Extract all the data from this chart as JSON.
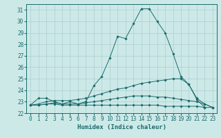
{
  "xlabel": "Humidex (Indice chaleur)",
  "xlim": [
    -0.5,
    23.5
  ],
  "ylim": [
    22,
    31.5
  ],
  "yticks": [
    22,
    23,
    24,
    25,
    26,
    27,
    28,
    29,
    30,
    31
  ],
  "xticks": [
    0,
    1,
    2,
    3,
    4,
    5,
    6,
    7,
    8,
    9,
    10,
    11,
    12,
    13,
    14,
    15,
    16,
    17,
    18,
    19,
    20,
    21,
    22,
    23
  ],
  "background_color": "#cce9e8",
  "grid_color": "#aacfce",
  "line_color": "#1a6b6b",
  "series": [
    {
      "x": [
        0,
        1,
        2,
        3,
        4,
        5,
        6,
        7,
        8,
        9,
        10,
        11,
        12,
        13,
        14,
        15,
        16,
        17,
        18,
        19,
        20,
        21,
        22
      ],
      "y": [
        22.7,
        23.3,
        23.3,
        23.0,
        22.8,
        23.0,
        22.8,
        23.0,
        24.4,
        25.2,
        26.8,
        28.7,
        28.5,
        29.8,
        31.1,
        31.1,
        30.0,
        29.0,
        27.2,
        25.2,
        24.5,
        23.2,
        22.5
      ]
    },
    {
      "x": [
        0,
        1,
        2,
        3,
        4,
        5,
        6,
        7,
        8,
        9,
        10,
        11,
        12,
        13,
        14,
        15,
        16,
        17,
        18,
        19,
        20,
        21,
        22,
        23
      ],
      "y": [
        22.7,
        22.8,
        23.0,
        23.1,
        23.1,
        23.1,
        23.2,
        23.3,
        23.5,
        23.7,
        23.9,
        24.1,
        24.2,
        24.4,
        24.6,
        24.7,
        24.8,
        24.9,
        25.0,
        25.0,
        24.5,
        23.3,
        22.8,
        22.5
      ]
    },
    {
      "x": [
        0,
        1,
        2,
        3,
        4,
        5,
        6,
        7,
        8,
        9,
        10,
        11,
        12,
        13,
        14,
        15,
        16,
        17,
        18,
        19,
        20,
        21,
        22,
        23
      ],
      "y": [
        22.7,
        22.7,
        22.8,
        22.9,
        22.8,
        22.8,
        22.8,
        22.9,
        23.0,
        23.1,
        23.2,
        23.3,
        23.4,
        23.5,
        23.5,
        23.5,
        23.4,
        23.4,
        23.3,
        23.2,
        23.1,
        23.0,
        22.8,
        22.5
      ]
    },
    {
      "x": [
        0,
        1,
        2,
        3,
        4,
        5,
        6,
        7,
        8,
        9,
        10,
        11,
        12,
        13,
        14,
        15,
        16,
        17,
        18,
        19,
        20,
        21,
        22,
        23
      ],
      "y": [
        22.7,
        22.7,
        22.8,
        22.8,
        22.7,
        22.7,
        22.7,
        22.7,
        22.7,
        22.7,
        22.7,
        22.7,
        22.7,
        22.7,
        22.7,
        22.7,
        22.7,
        22.6,
        22.6,
        22.6,
        22.6,
        22.6,
        22.5,
        22.5
      ]
    }
  ]
}
